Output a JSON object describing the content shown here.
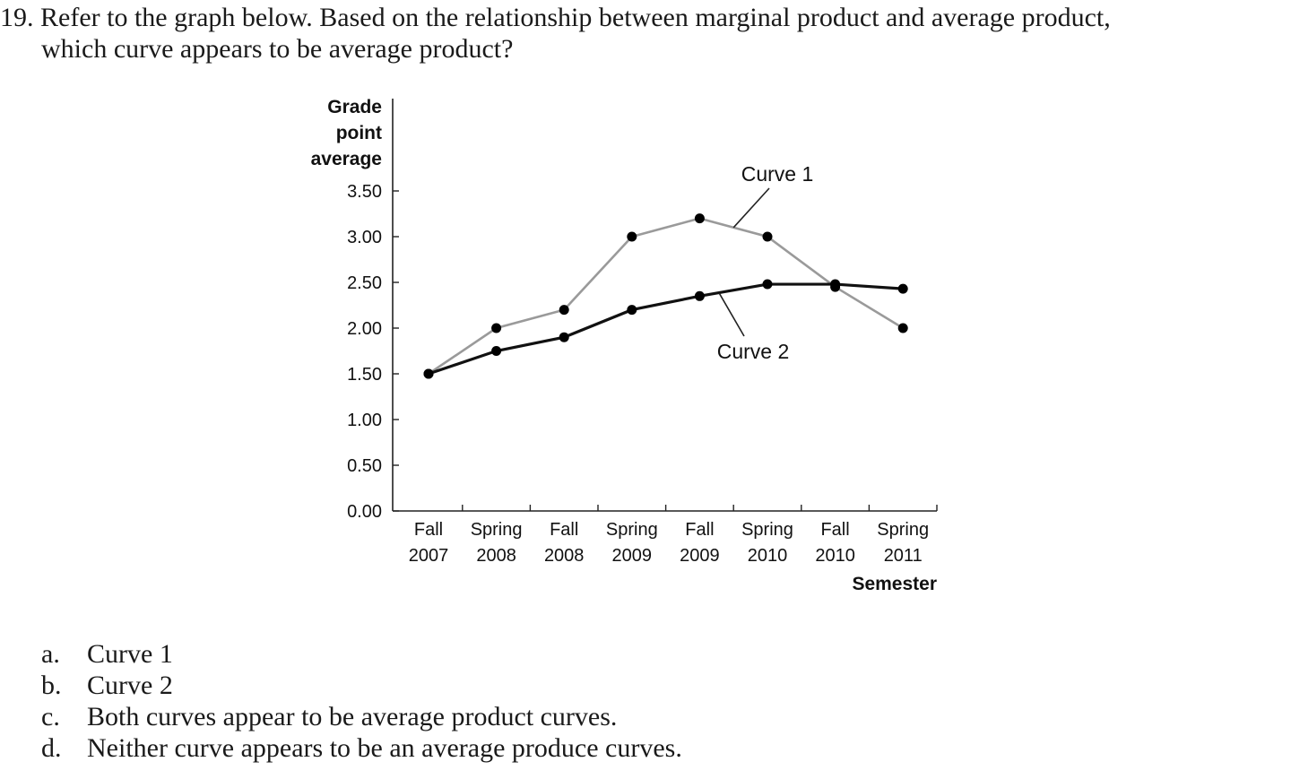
{
  "question": {
    "number": "19.",
    "line1": "Refer to the graph below. Based on the relationship between marginal product and average product,",
    "line2": "which curve appears to be average product?"
  },
  "chart_data": {
    "type": "line",
    "title": "",
    "ylabel": [
      "Grade",
      "point",
      "average"
    ],
    "xlabel": "Semester",
    "ylim": [
      0,
      3.5
    ],
    "yticks": [
      "0.00",
      "0.50",
      "1.00",
      "1.50",
      "2.00",
      "2.50",
      "3.00",
      "3.50"
    ],
    "categories": [
      [
        "Fall",
        "2007"
      ],
      [
        "Spring",
        "2008"
      ],
      [
        "Fall",
        "2008"
      ],
      [
        "Spring",
        "2009"
      ],
      [
        "Fall",
        "2009"
      ],
      [
        "Spring",
        "2010"
      ],
      [
        "Fall",
        "2010"
      ],
      [
        "Spring",
        "2011"
      ]
    ],
    "series": [
      {
        "name": "Curve 1",
        "color": "#9a9a9a",
        "values": [
          1.5,
          2.0,
          2.2,
          3.0,
          3.2,
          3.0,
          2.45,
          2.0
        ]
      },
      {
        "name": "Curve 2",
        "color": "#111111",
        "values": [
          1.5,
          1.75,
          1.9,
          2.2,
          2.35,
          2.48,
          2.48,
          2.43
        ]
      }
    ],
    "grid": false
  },
  "options": [
    {
      "letter": "a.",
      "text": "Curve 1"
    },
    {
      "letter": "b.",
      "text": "Curve 2"
    },
    {
      "letter": "c.",
      "text": "Both curves appear to be average product curves."
    },
    {
      "letter": "d.",
      "text": "Neither curve appears to be an average produce curves."
    }
  ]
}
